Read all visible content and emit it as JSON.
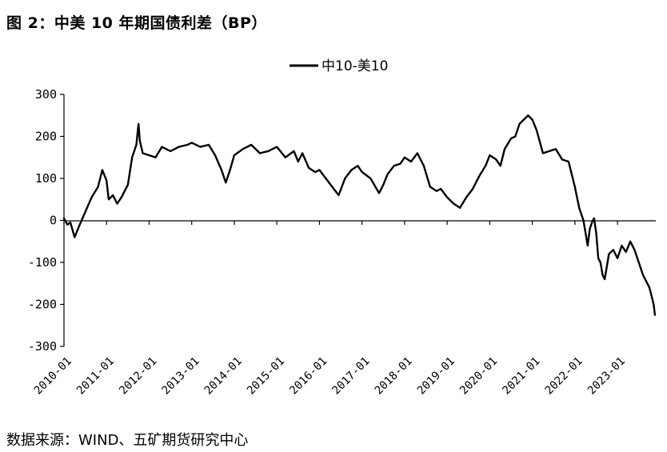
{
  "figure": {
    "title": "图 2：中美 10 年期国债利差（BP）",
    "source": "数据来源：WIND、五矿期货研究中心"
  },
  "chart_data": {
    "type": "line",
    "title": "中美10年期国债利差（BP）",
    "xlabel": "",
    "ylabel": "",
    "ylim": [
      -300,
      300
    ],
    "yticks": [
      "300",
      "200",
      "100",
      "0",
      "-100",
      "-200",
      "-300"
    ],
    "xlim": [
      2010.0,
      2023.9
    ],
    "xticks": [
      "2010-01",
      "2011-01",
      "2012-01",
      "2013-01",
      "2014-01",
      "2015-01",
      "2016-01",
      "2017-01",
      "2018-01",
      "2019-01",
      "2020-01",
      "2021-01",
      "2022-01",
      "2023-01"
    ],
    "legend": {
      "position": "top-center"
    },
    "series": [
      {
        "name": "中10-美10",
        "color": "#000000",
        "x": [
          2010.0,
          2010.08,
          2010.15,
          2010.25,
          2010.35,
          2010.5,
          2010.65,
          2010.8,
          2010.9,
          2011.0,
          2011.05,
          2011.15,
          2011.25,
          2011.35,
          2011.5,
          2011.6,
          2011.7,
          2011.75,
          2011.78,
          2011.85,
          2012.0,
          2012.15,
          2012.3,
          2012.5,
          2012.7,
          2012.9,
          2013.0,
          2013.2,
          2013.4,
          2013.55,
          2013.7,
          2013.8,
          2013.9,
          2014.0,
          2014.2,
          2014.4,
          2014.6,
          2014.8,
          2015.0,
          2015.2,
          2015.4,
          2015.5,
          2015.6,
          2015.75,
          2015.9,
          2016.0,
          2016.15,
          2016.3,
          2016.45,
          2016.6,
          2016.75,
          2016.9,
          2017.0,
          2017.2,
          2017.4,
          2017.5,
          2017.6,
          2017.75,
          2017.9,
          2018.0,
          2018.15,
          2018.3,
          2018.45,
          2018.6,
          2018.75,
          2018.85,
          2019.0,
          2019.15,
          2019.3,
          2019.45,
          2019.6,
          2019.75,
          2019.9,
          2020.0,
          2020.15,
          2020.25,
          2020.35,
          2020.5,
          2020.6,
          2020.7,
          2020.8,
          2020.9,
          2021.0,
          2021.1,
          2021.25,
          2021.4,
          2021.55,
          2021.7,
          2021.85,
          2022.0,
          2022.1,
          2022.2,
          2022.25,
          2022.3,
          2022.35,
          2022.4,
          2022.45,
          2022.5,
          2022.55,
          2022.6,
          2022.65,
          2022.7,
          2022.8,
          2022.9,
          2023.0,
          2023.1,
          2023.2,
          2023.3,
          2023.4,
          2023.5,
          2023.6,
          2023.7,
          2023.75,
          2023.8,
          2023.85,
          2023.88
        ],
        "values": [
          5,
          -10,
          -5,
          -40,
          -15,
          20,
          55,
          80,
          120,
          95,
          50,
          60,
          40,
          55,
          85,
          150,
          180,
          230,
          190,
          160,
          155,
          150,
          175,
          165,
          175,
          180,
          185,
          175,
          180,
          155,
          120,
          90,
          120,
          155,
          170,
          180,
          160,
          165,
          175,
          150,
          165,
          140,
          160,
          125,
          115,
          120,
          100,
          80,
          60,
          100,
          120,
          130,
          115,
          100,
          65,
          85,
          110,
          130,
          135,
          150,
          140,
          160,
          130,
          80,
          70,
          75,
          55,
          40,
          30,
          55,
          75,
          105,
          130,
          155,
          145,
          130,
          170,
          195,
          200,
          230,
          240,
          250,
          240,
          215,
          160,
          165,
          170,
          145,
          140,
          80,
          30,
          0,
          -30,
          -60,
          -20,
          -5,
          5,
          -30,
          -90,
          -100,
          -130,
          -140,
          -80,
          -70,
          -90,
          -60,
          -75,
          -50,
          -70,
          -100,
          -130,
          -150,
          -160,
          -180,
          -200,
          -225
        ]
      }
    ]
  }
}
